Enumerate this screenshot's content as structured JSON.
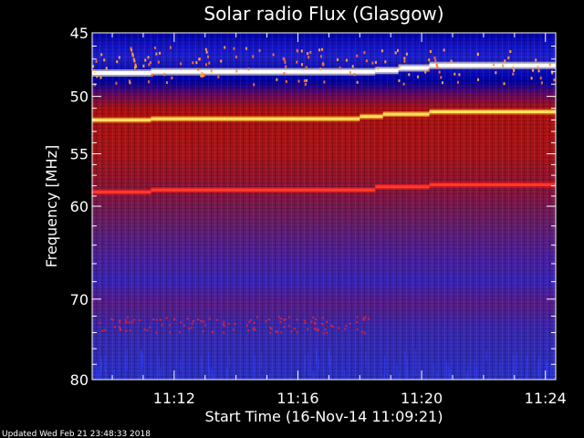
{
  "chart_data": {
    "type": "heatmap",
    "title": "Solar radio Flux (Glasgow)",
    "xlabel": "Start Time (16-Nov-14 11:09:21)",
    "ylabel": "Frequency [MHz]",
    "xlim": [
      "11:09:21",
      "11:24:20"
    ],
    "ylim": [
      45,
      80
    ],
    "y_scale": "log",
    "x_ticks": [
      "11:12",
      "11:16",
      "11:20",
      "11:24"
    ],
    "y_ticks": [
      45,
      50,
      55,
      60,
      70,
      80
    ],
    "colormap": "blue-red-yellow-white",
    "bright_bands": [
      {
        "freq_mhz": 48.0,
        "intensity": "white",
        "time_segments": [
          {
            "start": "11:09:21",
            "end": "11:11:15",
            "freq_mhz": 48.1
          },
          {
            "start": "11:11:15",
            "end": "11:18:30",
            "freq_mhz": 48.0
          },
          {
            "start": "11:18:30",
            "end": "11:19:15",
            "freq_mhz": 47.9
          },
          {
            "start": "11:19:15",
            "end": "11:20:15",
            "freq_mhz": 47.7
          },
          {
            "start": "11:20:15",
            "end": "11:24:20",
            "freq_mhz": 47.5
          }
        ]
      },
      {
        "freq_mhz": 51.8,
        "intensity": "yellow",
        "time_segments": [
          {
            "start": "11:09:21",
            "end": "11:11:15",
            "freq_mhz": 52.0
          },
          {
            "start": "11:11:15",
            "end": "11:18:00",
            "freq_mhz": 51.9
          },
          {
            "start": "11:18:00",
            "end": "11:18:45",
            "freq_mhz": 51.7
          },
          {
            "start": "11:18:45",
            "end": "11:20:15",
            "freq_mhz": 51.5
          },
          {
            "start": "11:20:15",
            "end": "11:24:20",
            "freq_mhz": 51.3
          }
        ]
      },
      {
        "freq_mhz": 58.5,
        "intensity": "red",
        "time_segments": [
          {
            "start": "11:09:21",
            "end": "11:11:15",
            "freq_mhz": 58.6
          },
          {
            "start": "11:11:15",
            "end": "11:18:30",
            "freq_mhz": 58.4
          },
          {
            "start": "11:18:30",
            "end": "11:20:15",
            "freq_mhz": 58.1
          },
          {
            "start": "11:20:15",
            "end": "11:24:20",
            "freq_mhz": 57.9
          }
        ]
      }
    ],
    "footer": "Updated Wed Feb 21 23:48:33 2018"
  }
}
